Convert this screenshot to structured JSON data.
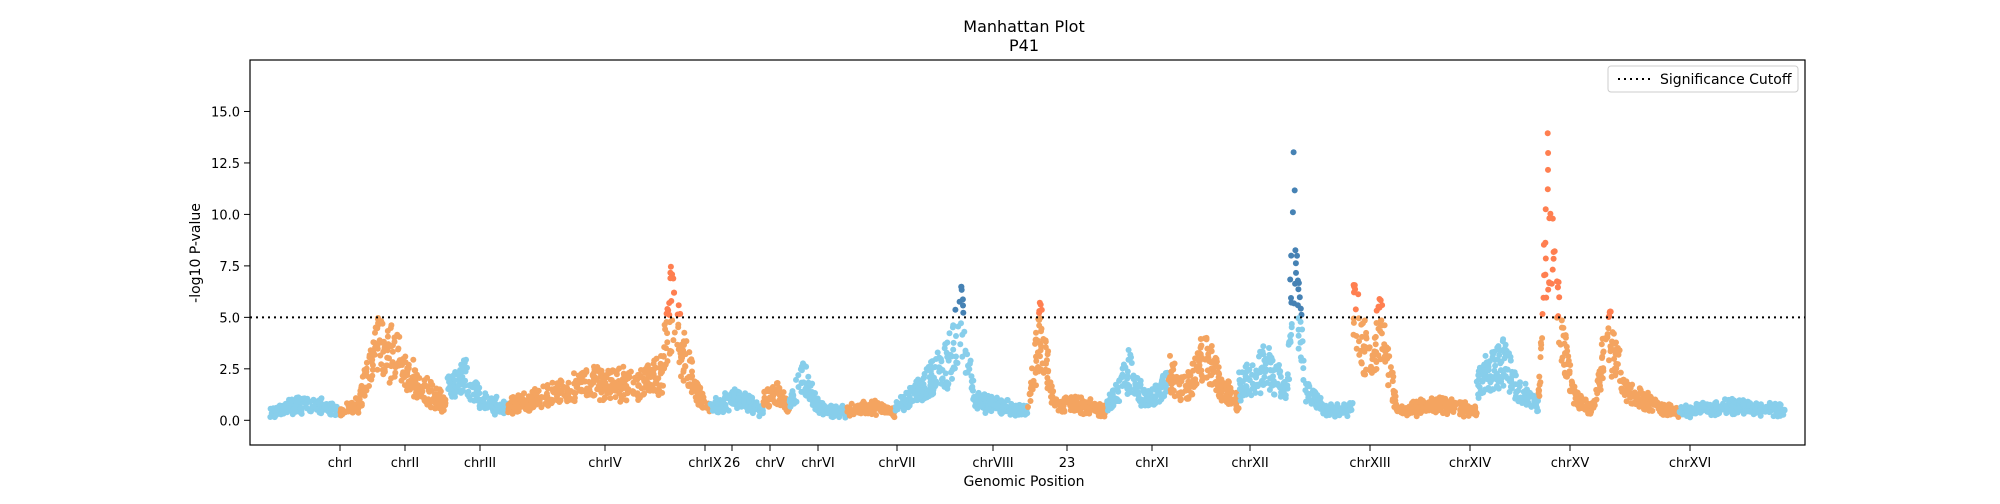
{
  "chart_data": {
    "type": "scatter",
    "title": "Manhattan Plot",
    "subtitle": "P41",
    "xlabel": "Genomic Position",
    "ylabel": "-log10 P-value",
    "ylim": [
      -1.2,
      17.5
    ],
    "yticks": [
      0.0,
      2.5,
      5.0,
      7.5,
      10.0,
      12.5,
      15.0
    ],
    "ytick_labels": [
      "0.0",
      "2.5",
      "5.0",
      "7.5",
      "10.0",
      "12.5",
      "15.0"
    ],
    "significance_cutoff": 5.0,
    "legend": {
      "position": "top-right",
      "entries": [
        {
          "label": "Significance Cutoff",
          "style": "dotted-line"
        }
      ]
    },
    "grid": false,
    "xlim": [
      0,
      1565
    ],
    "chromosomes": [
      {
        "name": "chrI",
        "start": 0,
        "end": 80,
        "label_pos": 70,
        "color": "#87CEEB",
        "sig_color": "#4682B4",
        "profile": [
          [
            0,
            0.4
          ],
          [
            40,
            0.9
          ],
          [
            80,
            0.5
          ]
        ]
      },
      {
        "name": "chrII",
        "start": 80,
        "end": 200,
        "label_pos": 135,
        "color": "#F4A460",
        "sig_color": "#FF7F50",
        "profile": [
          [
            0,
            0.4
          ],
          [
            20,
            0.8
          ],
          [
            40,
            4.0
          ],
          [
            60,
            3.5
          ],
          [
            90,
            1.8
          ],
          [
            120,
            0.8
          ]
        ]
      },
      {
        "name": "chrIII",
        "start": 200,
        "end": 270,
        "label_pos": 210,
        "color": "#87CEEB",
        "sig_color": "#4682B4",
        "profile": [
          [
            0,
            1.5
          ],
          [
            20,
            2.3
          ],
          [
            40,
            1.0
          ],
          [
            70,
            0.6
          ]
        ]
      },
      {
        "name": "chrIV",
        "start": 270,
        "end": 500,
        "label_pos": 335,
        "color": "#F4A460",
        "sig_color": "#FF7F50",
        "profile": [
          [
            0,
            0.7
          ],
          [
            40,
            1.2
          ],
          [
            100,
            2.0
          ],
          [
            150,
            1.8
          ],
          [
            175,
            2.5
          ],
          [
            188,
            6.8
          ],
          [
            195,
            4.0
          ],
          [
            215,
            1.5
          ],
          [
            230,
            0.6
          ]
        ]
      },
      {
        "name": "chrIX",
        "start": 500,
        "end": 560,
        "label_pos": 435,
        "color": "#87CEEB",
        "sig_color": "#4682B4",
        "profile": [
          [
            0,
            0.6
          ],
          [
            30,
            1.2
          ],
          [
            60,
            0.5
          ]
        ]
      },
      {
        "name": "26",
        "start": 560,
        "end": 590,
        "label_pos": 462,
        "color": "#F4A460",
        "sig_color": "#FF7F50",
        "profile": [
          [
            0,
            1.2
          ],
          [
            15,
            1.5
          ],
          [
            30,
            0.6
          ]
        ]
      },
      {
        "name": "chrV",
        "start": 590,
        "end": 655,
        "label_pos": 500,
        "color": "#87CEEB",
        "sig_color": "#4682B4",
        "profile": [
          [
            0,
            0.8
          ],
          [
            15,
            2.2
          ],
          [
            35,
            0.6
          ],
          [
            65,
            0.4
          ]
        ]
      },
      {
        "name": "chrVI",
        "start": 655,
        "end": 710,
        "label_pos": 548,
        "color": "#F4A460",
        "sig_color": "#FF7F50",
        "profile": [
          [
            0,
            0.5
          ],
          [
            30,
            0.7
          ],
          [
            55,
            0.4
          ]
        ]
      },
      {
        "name": "chrVII",
        "start": 710,
        "end": 860,
        "label_pos": 627,
        "color": "#87CEEB",
        "sig_color": "#4682B4",
        "profile": [
          [
            0,
            0.6
          ],
          [
            30,
            1.8
          ],
          [
            60,
            3.0
          ],
          [
            75,
            5.2
          ],
          [
            90,
            1.0
          ],
          [
            120,
            0.7
          ],
          [
            150,
            0.5
          ]
        ]
      },
      {
        "name": "chrVIII",
        "start": 860,
        "end": 950,
        "label_pos": 723,
        "color": "#F4A460",
        "sig_color": "#FF7F50",
        "profile": [
          [
            0,
            0.6
          ],
          [
            15,
            4.8
          ],
          [
            30,
            0.9
          ],
          [
            60,
            0.8
          ],
          [
            90,
            0.5
          ]
        ]
      },
      {
        "name": "23",
        "start": 950,
        "end": 1020,
        "label_pos": 797,
        "color": "#87CEEB",
        "sig_color": "#4682B4",
        "profile": [
          [
            0,
            0.7
          ],
          [
            25,
            2.6
          ],
          [
            45,
            1.0
          ],
          [
            70,
            2.0
          ]
        ]
      },
      {
        "name": "chrXI",
        "start": 1020,
        "end": 1100,
        "label_pos": 882,
        "color": "#F4A460",
        "sig_color": "#FF7F50",
        "profile": [
          [
            0,
            2.5
          ],
          [
            20,
            1.5
          ],
          [
            40,
            3.5
          ],
          [
            60,
            1.8
          ],
          [
            80,
            0.8
          ]
        ]
      },
      {
        "name": "chrXII",
        "start": 1100,
        "end": 1230,
        "label_pos": 980,
        "color": "#87CEEB",
        "sig_color": "#4682B4",
        "profile": [
          [
            0,
            1.8
          ],
          [
            30,
            2.8
          ],
          [
            55,
            1.5
          ],
          [
            62,
            10.0
          ],
          [
            75,
            1.5
          ],
          [
            100,
            0.5
          ],
          [
            130,
            0.6
          ]
        ]
      },
      {
        "name": "chrXIII",
        "start": 1230,
        "end": 1370,
        "label_pos": 1100,
        "color": "#F4A460",
        "sig_color": "#FF7F50",
        "profile": [
          [
            0,
            5.5
          ],
          [
            20,
            3.0
          ],
          [
            30,
            5.0
          ],
          [
            50,
            0.5
          ],
          [
            100,
            0.8
          ],
          [
            140,
            0.5
          ]
        ]
      },
      {
        "name": "chrXIV",
        "start": 1370,
        "end": 1440,
        "label_pos": 1200,
        "color": "#87CEEB",
        "sig_color": "#4682B4",
        "profile": [
          [
            0,
            2.0
          ],
          [
            30,
            3.2
          ],
          [
            50,
            1.5
          ],
          [
            70,
            0.8
          ]
        ]
      },
      {
        "name": "chrXV",
        "start": 1440,
        "end": 1600,
        "label_pos": 1300,
        "color": "#F4A460",
        "sig_color": "#FF7F50",
        "profile": [
          [
            0,
            1.0
          ],
          [
            10,
            11.0
          ],
          [
            20,
            6.0
          ],
          [
            40,
            1.2
          ],
          [
            60,
            0.5
          ],
          [
            80,
            4.5
          ],
          [
            100,
            1.5
          ],
          [
            140,
            0.6
          ],
          [
            160,
            0.4
          ]
        ]
      },
      {
        "name": "chrXVI",
        "start": 1600,
        "end": 1720,
        "label_pos": 1420,
        "color": "#87CEEB",
        "sig_color": "#4682B4",
        "profile": [
          [
            0,
            0.5
          ],
          [
            60,
            0.7
          ],
          [
            120,
            0.5
          ]
        ]
      }
    ]
  }
}
